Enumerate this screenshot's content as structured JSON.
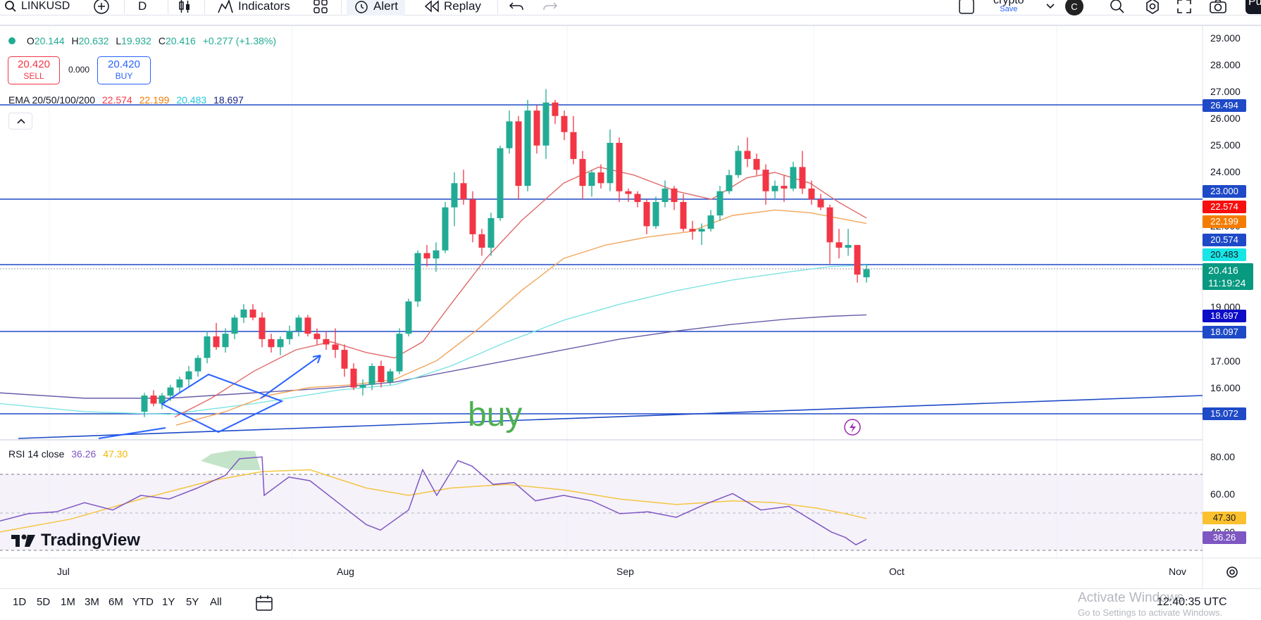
{
  "toolbar": {
    "symbol": "LINKUSD",
    "interval": "D",
    "indicators_label": "Indicators",
    "alert_label": "Alert",
    "replay_label": "Replay",
    "layout_name": "crypto",
    "layout_status": "Save",
    "avatar_letter": "C",
    "publish_label": "Pu"
  },
  "ohlc": {
    "open_label": "O",
    "open": "20.144",
    "high_label": "H",
    "high": "20.632",
    "low_label": "L",
    "low": "19.932",
    "close_label": "C",
    "close": "20.416",
    "change": "+0.277 (+1.38%)"
  },
  "trade": {
    "sell_price": "20.420",
    "sell_label": "SELL",
    "spread": "0.000",
    "buy_price": "20.420",
    "buy_label": "BUY"
  },
  "ema_legend": {
    "label": "EMA 20/50/100/200",
    "ema20": "22.574",
    "ema50": "22.199",
    "ema100": "20.483",
    "ema200": "18.697"
  },
  "rsi_legend": {
    "label": "RSI 14 close",
    "rsi": "36.26",
    "ma": "47.30"
  },
  "annotation_text": "buy",
  "price_axis_labels": [
    "29.000",
    "28.000",
    "27.000",
    "26.000",
    "25.000",
    "24.000",
    "22.000",
    "19.000",
    "17.000",
    "16.000"
  ],
  "price_tags": {
    "line_26494": "26.494",
    "line_23000": "23.000",
    "ema20": "22.574",
    "ema50": "22.199",
    "high_tag": "20.574",
    "ema100": "20.483",
    "last_price": "20.416",
    "countdown": "11:19:24",
    "ema200": "18.697",
    "line_18097": "18.097",
    "line_15072": "15.072"
  },
  "rsi_axis_labels": [
    "80.00",
    "60.00",
    "40.00"
  ],
  "rsi_tags": {
    "ma": "47.30",
    "rsi": "36.26"
  },
  "date_labels": [
    "Jul",
    "Aug",
    "Sep",
    "Oct",
    "Nov"
  ],
  "ranges": [
    "1D",
    "5D",
    "1M",
    "3M",
    "6M",
    "YTD",
    "1Y",
    "5Y",
    "All"
  ],
  "clock": "12:40:35 UTC",
  "brand": "TradingView",
  "os_watermark": {
    "title": "Activate Windows",
    "subtitle": "Go to Settings to activate Windows."
  },
  "colors": {
    "up": "#22ab94",
    "down": "#f23645",
    "hline": "#1e4ac7",
    "ema20": "#e06a6a",
    "ema50": "#f2a65a",
    "ema100": "#7fe3e3",
    "ema200": "#6a5ca8",
    "rsi": "#7e57c2",
    "rsi_ma": "#f5c542"
  }
}
